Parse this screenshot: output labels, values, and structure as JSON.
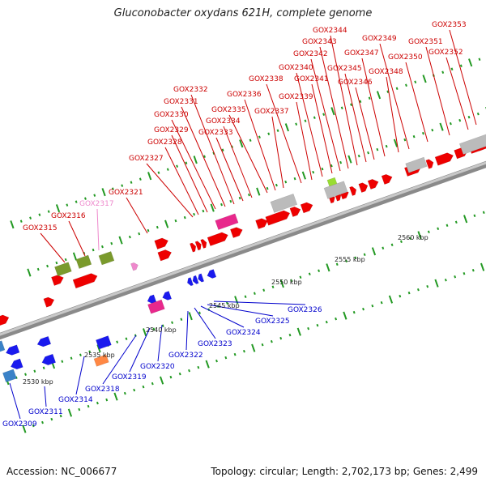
{
  "title": "Gluconobacter oxydans 621H, complete genome",
  "footer": {
    "accession": "Accession: NC_006677",
    "summary": "Topology: circular; Length: 2,702,173 bp; Genes: 2,499"
  },
  "colors": {
    "forward_label": "#cc0000",
    "reverse_label": "#0000cc",
    "pseudo_label": "#ee88cc",
    "backbone": "#999999",
    "tick": "#229922"
  },
  "scale_labels": [
    "2530 kbp",
    "2535 kbp",
    "2540 kbp",
    "2545 kbp",
    "2550 kbp",
    "2555 kbp",
    "2560 kbp"
  ],
  "forward_genes": [
    "GOX2315",
    "GOX2316",
    "GOX2317",
    "GOX2321",
    "GOX2327",
    "GOX2328",
    "GOX2329",
    "GOX2330",
    "GOX2331",
    "GOX2332",
    "GOX2333",
    "GOX2334",
    "GOX2335",
    "GOX2336",
    "GOX2337",
    "GOX2338",
    "GOX2339",
    "GOX2340",
    "GOX2341",
    "GOX2342",
    "GOX2343",
    "GOX2344",
    "GOX2345",
    "GOX2346",
    "GOX2347",
    "GOX2348",
    "GOX2349",
    "GOX2350",
    "GOX2351",
    "GOX2352",
    "GOX2353"
  ],
  "reverse_genes": [
    "GOX2309",
    "GOX2311",
    "GOX2314",
    "GOX2318",
    "GOX2319",
    "GOX2320",
    "GOX2322",
    "GOX2323",
    "GOX2324",
    "GOX2325",
    "GOX2326"
  ]
}
